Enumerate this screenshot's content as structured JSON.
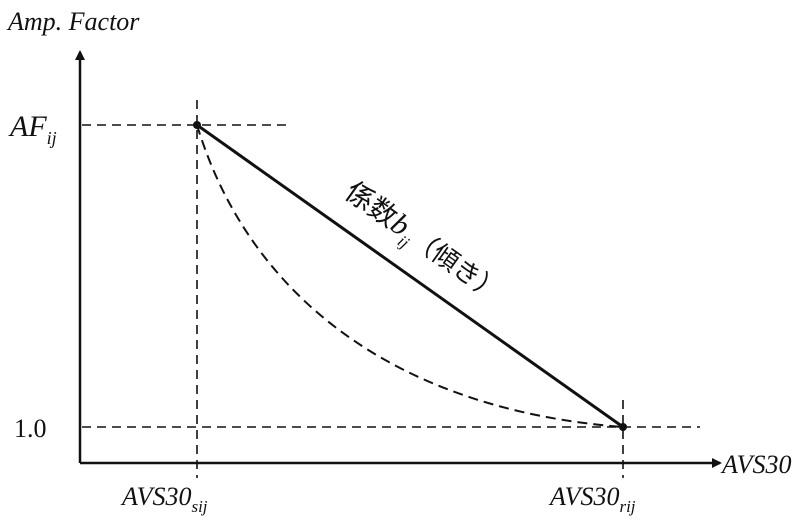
{
  "diagram": {
    "y_axis_label": "Amp. Factor",
    "x_axis_label": "AVS30",
    "y_tick_top": {
      "base": "AF",
      "sub": "ij"
    },
    "y_tick_bottom": "1.0",
    "x_tick_left": {
      "base": "AVS30",
      "sub": "sij"
    },
    "x_tick_right": {
      "base": "AVS30",
      "sub": "rij"
    },
    "line_label": {
      "prefix": "係数",
      "base": "b",
      "sub": "ij",
      "suffix": "（傾き）"
    }
  }
}
